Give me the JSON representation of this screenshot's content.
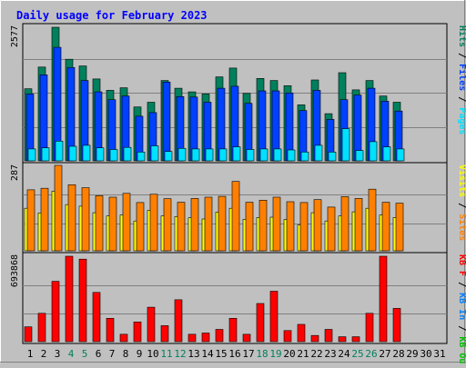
{
  "title": "Daily usage for February 2023",
  "colors": {
    "background": "#c0c0c0",
    "title": "#0000ff",
    "hits": "#00805c",
    "files": "#0040ff",
    "pages": "#00e0ff",
    "visits": "#ffff00",
    "sites": "#ff8000",
    "kbin": "#0080ff",
    "kbout": "#00c000",
    "kbf": "#ff0000",
    "weekend_day": "#00805c",
    "weekday": "#000000"
  },
  "days": [
    "1",
    "2",
    "3",
    "4",
    "5",
    "6",
    "7",
    "8",
    "9",
    "10",
    "11",
    "12",
    "13",
    "14",
    "15",
    "16",
    "17",
    "18",
    "19",
    "20",
    "21",
    "22",
    "23",
    "24",
    "25",
    "26",
    "27",
    "28",
    "29",
    "30",
    "31"
  ],
  "weekend_days": [
    4,
    5,
    11,
    12,
    18,
    19,
    25,
    26
  ],
  "chart_data": [
    {
      "type": "bar",
      "name": "hits-files-pages",
      "y_max_label": "2577",
      "ylim": [
        0,
        2577
      ],
      "legend": [
        {
          "text": "Hits",
          "color": "#00805c"
        },
        {
          "text": " / ",
          "color": "#000000"
        },
        {
          "text": "Files",
          "color": "#0040ff"
        },
        {
          "text": " / ",
          "color": "#000000"
        },
        {
          "text": "Pages",
          "color": "#00e0ff"
        }
      ],
      "series": [
        {
          "name": "Hits",
          "values": [
            1390,
            1810,
            2577,
            1960,
            1830,
            1580,
            1360,
            1410,
            1040,
            1130,
            1550,
            1400,
            1330,
            1290,
            1620,
            1790,
            1300,
            1590,
            1550,
            1450,
            1080,
            1560,
            910,
            1700,
            1370,
            1550,
            1250,
            1130,
            0,
            0,
            0
          ]
        },
        {
          "name": "Files",
          "values": [
            1290,
            1660,
            2190,
            1800,
            1550,
            1330,
            1180,
            1250,
            860,
            930,
            1520,
            1240,
            1230,
            1130,
            1400,
            1440,
            1110,
            1350,
            1350,
            1310,
            970,
            1360,
            800,
            1180,
            1270,
            1400,
            1150,
            960,
            0,
            0,
            0
          ]
        },
        {
          "name": "Pages",
          "values": [
            230,
            250,
            380,
            280,
            300,
            250,
            220,
            260,
            170,
            290,
            180,
            240,
            230,
            230,
            230,
            270,
            220,
            230,
            230,
            210,
            170,
            300,
            170,
            620,
            200,
            370,
            270,
            230,
            0,
            0,
            0
          ]
        }
      ]
    },
    {
      "type": "bar",
      "name": "visits-sites",
      "y_max_label": "287",
      "ylim": [
        0,
        287
      ],
      "legend": [
        {
          "text": "Visits",
          "color": "#ffff00"
        },
        {
          "text": " / ",
          "color": "#000000"
        },
        {
          "text": "Sites",
          "color": "#ff8000"
        }
      ],
      "series": [
        {
          "name": "Visits",
          "values": [
            143,
            127,
            200,
            155,
            150,
            128,
            117,
            120,
            100,
            136,
            117,
            115,
            111,
            107,
            130,
            143,
            106,
            112,
            113,
            105,
            87,
            128,
            100,
            117,
            131,
            143,
            120,
            112,
            0,
            0,
            0
          ]
        },
        {
          "name": "Sites",
          "values": [
            205,
            210,
            287,
            222,
            212,
            185,
            180,
            193,
            162,
            190,
            175,
            163,
            176,
            180,
            183,
            233,
            163,
            170,
            180,
            165,
            162,
            172,
            147,
            182,
            176,
            207,
            163,
            160,
            0,
            0,
            0
          ]
        }
      ]
    },
    {
      "type": "bar",
      "name": "kbf-kbin-kbout",
      "y_max_label": "693868",
      "ylim": [
        0,
        693868
      ],
      "legend": [
        {
          "text": "KB F",
          "color": "#ff0000"
        },
        {
          "text": " / ",
          "color": "#000000"
        },
        {
          "text": "KB In",
          "color": "#0080ff"
        },
        {
          "text": " / ",
          "color": "#000000"
        },
        {
          "text": "KB Out",
          "color": "#00c000"
        }
      ],
      "series": [
        {
          "name": "KB F",
          "values": [
            120000,
            230000,
            490000,
            693868,
            670000,
            400000,
            190000,
            60000,
            160000,
            280000,
            130000,
            340000,
            60000,
            70000,
            100000,
            190000,
            60000,
            310000,
            410000,
            90000,
            140000,
            50000,
            100000,
            40000,
            40000,
            230000,
            693868,
            270000,
            0,
            0,
            0
          ]
        }
      ]
    }
  ]
}
